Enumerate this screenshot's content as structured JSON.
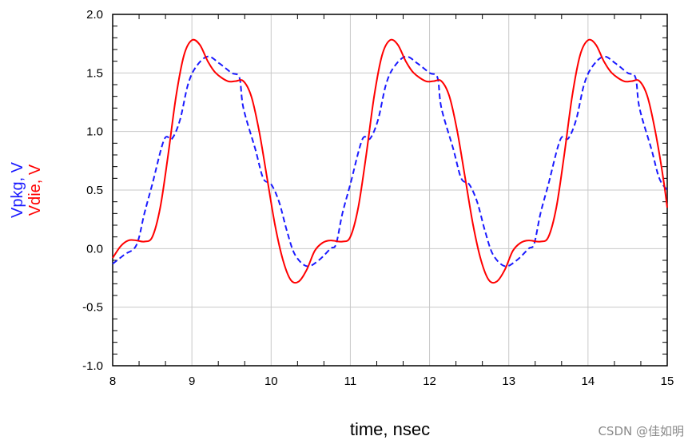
{
  "chart_data": {
    "type": "line",
    "xlabel": "time, nsec",
    "ylabels": [
      {
        "text": "Vpkg, V",
        "color": "#1a1aff"
      },
      {
        "text": "Vdie, V",
        "color": "#ff0000"
      }
    ],
    "xlim": [
      8,
      15
    ],
    "ylim": [
      -1.0,
      2.0
    ],
    "x_ticks": [
      8,
      9,
      10,
      11,
      12,
      13,
      14,
      15
    ],
    "x_tick_labels": [
      "8",
      "9",
      "10",
      "11",
      "12",
      "13",
      "14",
      "15"
    ],
    "y_ticks": [
      -1.0,
      -0.5,
      0.0,
      0.5,
      1.0,
      1.5,
      2.0
    ],
    "y_tick_labels": [
      "-1.0",
      "-0.5",
      "0.0",
      "0.5",
      "1.0",
      "1.5",
      "2.0"
    ],
    "grid": true,
    "series": [
      {
        "name": "Vpkg, V",
        "color": "#1a1aff",
        "style": "dashed",
        "x": [
          8.0,
          8.15,
          8.3,
          8.4,
          8.5,
          8.65,
          8.75,
          8.85,
          8.95,
          9.05,
          9.2,
          9.35,
          9.5,
          9.6,
          9.65,
          9.8,
          9.9,
          10.0,
          10.1,
          10.2,
          10.3,
          10.45,
          10.6,
          10.75,
          10.82,
          10.9,
          11.0,
          11.15,
          11.25,
          11.35,
          11.45,
          11.55,
          11.7,
          11.85,
          12.0,
          12.1,
          12.15,
          12.3,
          12.4,
          12.5,
          12.6,
          12.7,
          12.8,
          12.95,
          13.1,
          13.25,
          13.32,
          13.4,
          13.5,
          13.65,
          13.75,
          13.85,
          13.95,
          14.05,
          14.2,
          14.35,
          14.5,
          14.6,
          14.65,
          14.8,
          14.9,
          15.0
        ],
        "y": [
          -0.13,
          -0.05,
          0.03,
          0.3,
          0.55,
          0.93,
          0.94,
          1.1,
          1.4,
          1.55,
          1.64,
          1.58,
          1.5,
          1.46,
          1.2,
          0.85,
          0.6,
          0.55,
          0.4,
          0.15,
          -0.05,
          -0.15,
          -0.1,
          0.0,
          0.04,
          0.3,
          0.55,
          0.93,
          0.94,
          1.1,
          1.4,
          1.55,
          1.64,
          1.58,
          1.5,
          1.46,
          1.2,
          0.85,
          0.6,
          0.55,
          0.4,
          0.15,
          -0.05,
          -0.15,
          -0.1,
          0.0,
          0.04,
          0.3,
          0.55,
          0.93,
          0.94,
          1.1,
          1.4,
          1.55,
          1.64,
          1.58,
          1.5,
          1.46,
          1.2,
          0.85,
          0.6,
          0.5
        ]
      },
      {
        "name": "Vdie, V",
        "color": "#ff0000",
        "style": "solid",
        "x": [
          8.0,
          8.1,
          8.2,
          8.3,
          8.4,
          8.5,
          8.6,
          8.7,
          8.8,
          8.9,
          9.0,
          9.1,
          9.2,
          9.3,
          9.45,
          9.55,
          9.65,
          9.75,
          9.85,
          9.95,
          10.05,
          10.15,
          10.25,
          10.35,
          10.45,
          10.55,
          10.65,
          10.75,
          10.9,
          11.0,
          11.1,
          11.2,
          11.3,
          11.4,
          11.5,
          11.6,
          11.7,
          11.8,
          11.95,
          12.05,
          12.15,
          12.25,
          12.35,
          12.45,
          12.55,
          12.65,
          12.75,
          12.85,
          12.95,
          13.05,
          13.15,
          13.25,
          13.4,
          13.5,
          13.6,
          13.7,
          13.8,
          13.9,
          14.0,
          14.1,
          14.2,
          14.3,
          14.45,
          14.55,
          14.65,
          14.75,
          14.85,
          14.95,
          15.0
        ],
        "y": [
          -0.08,
          0.02,
          0.07,
          0.07,
          0.06,
          0.1,
          0.35,
          0.8,
          1.3,
          1.65,
          1.78,
          1.74,
          1.6,
          1.5,
          1.43,
          1.43,
          1.43,
          1.3,
          1.0,
          0.6,
          0.2,
          -0.1,
          -0.27,
          -0.28,
          -0.18,
          -0.02,
          0.05,
          0.07,
          0.06,
          0.1,
          0.35,
          0.8,
          1.3,
          1.65,
          1.78,
          1.74,
          1.6,
          1.5,
          1.43,
          1.43,
          1.43,
          1.3,
          1.0,
          0.6,
          0.2,
          -0.1,
          -0.27,
          -0.28,
          -0.18,
          -0.02,
          0.05,
          0.07,
          0.06,
          0.1,
          0.35,
          0.8,
          1.3,
          1.65,
          1.78,
          1.74,
          1.6,
          1.5,
          1.43,
          1.43,
          1.43,
          1.3,
          1.0,
          0.6,
          0.35
        ]
      }
    ]
  },
  "watermark": "CSDN @佳如明"
}
